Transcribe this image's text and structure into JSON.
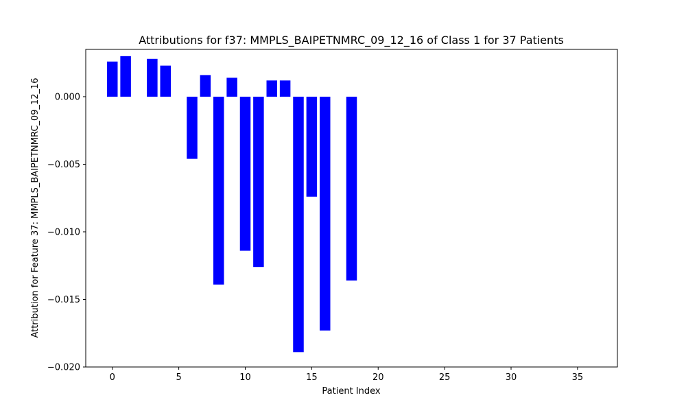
{
  "chart_data": {
    "type": "bar",
    "title": "Attributions for f37: MMPLS_BAIPETNMRC_09_12_16 of Class 1 for 37 Patients",
    "xlabel": "Patient Index",
    "ylabel": "Attribution for Feature 37: MMPLS_BAIPETNMRC_09_12_16",
    "xlim": [
      -2.0,
      38.0
    ],
    "ylim": [
      -0.02,
      0.0035
    ],
    "x_ticks": [
      0,
      5,
      10,
      15,
      20,
      25,
      30,
      35
    ],
    "x_tick_labels": [
      "0",
      "5",
      "10",
      "15",
      "20",
      "25",
      "30",
      "35"
    ],
    "y_ticks": [
      0.0,
      -0.005,
      -0.01,
      -0.015,
      -0.02
    ],
    "y_tick_labels": [
      "0.000",
      "−0.005",
      "−0.010",
      "−0.015",
      "−0.020"
    ],
    "bar_width": 0.8,
    "bar_color": "#0000ff",
    "grid": false,
    "legend": "none",
    "categories": [
      0,
      1,
      3,
      4,
      6,
      7,
      8,
      9,
      10,
      11,
      12,
      13,
      14,
      15,
      16,
      18
    ],
    "values": [
      0.0026,
      0.003,
      0.0028,
      0.0023,
      -0.0046,
      0.0016,
      -0.0139,
      0.0014,
      -0.0114,
      -0.0126,
      0.0012,
      0.0012,
      -0.0189,
      -0.0074,
      -0.0173,
      -0.0136
    ]
  }
}
